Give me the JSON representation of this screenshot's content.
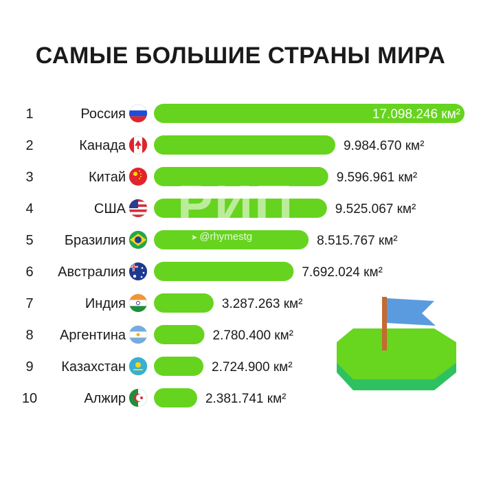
{
  "title": "САМЫЕ БОЛЬШИЕ СТРАНЫ МИРА",
  "watermark": {
    "logo_text": "РИП",
    "handle": "@rhymestg"
  },
  "colors": {
    "bar": "#66d41e",
    "text": "#1a1a1a",
    "inside_label": "#ffffff"
  },
  "chart_data": {
    "type": "bar",
    "orientation": "horizontal",
    "unit": "км²",
    "title": "САМЫЕ БОЛЬШИЕ СТРАНЫ МИРА",
    "categories": [
      "Россия",
      "Канада",
      "Китай",
      "США",
      "Бразилия",
      "Австралия",
      "Индия",
      "Аргентина",
      "Казахстан",
      "Алжир"
    ],
    "ranks": [
      "1",
      "2",
      "3",
      "4",
      "5",
      "6",
      "7",
      "8",
      "9",
      "10"
    ],
    "flags": [
      "russia-flag-icon",
      "canada-flag-icon",
      "china-flag-icon",
      "usa-flag-icon",
      "brazil-flag-icon",
      "australia-flag-icon",
      "india-flag-icon",
      "argentina-flag-icon",
      "kazakhstan-flag-icon",
      "algeria-flag-icon"
    ],
    "values": [
      17098246,
      9984670,
      9596961,
      9525067,
      8515767,
      7692024,
      3287263,
      2780400,
      2724900,
      2381741
    ],
    "labels": [
      "17.098.246 км²",
      "9.984.670 км²",
      "9.596.961 км²",
      "9.525.067 км²",
      "8.515.767 км²",
      "7.692.024 км²",
      "3.287.263 км²",
      "2.780.400 км²",
      "2.724.900 км²",
      "2.381.741 км²"
    ],
    "grid": false,
    "legend": "none"
  }
}
